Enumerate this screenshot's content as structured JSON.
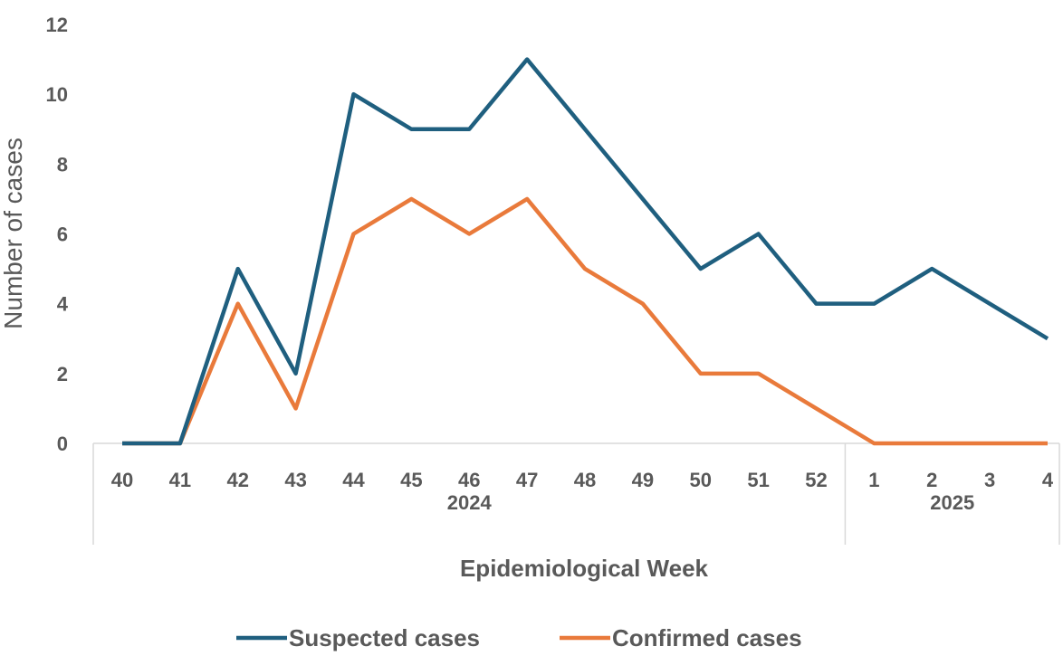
{
  "chart_data": {
    "type": "line",
    "title": "",
    "xlabel": "Epidemiological Week",
    "ylabel": "Number of cases",
    "ylim": [
      0,
      12
    ],
    "yticks": [
      0,
      2,
      4,
      6,
      8,
      10,
      12
    ],
    "grid": false,
    "legend_position": "bottom",
    "categories": [
      "40",
      "41",
      "42",
      "43",
      "44",
      "45",
      "46",
      "47",
      "48",
      "49",
      "50",
      "51",
      "52",
      "1",
      "2",
      "3",
      "4"
    ],
    "groups": [
      {
        "label": "2024",
        "count": 13
      },
      {
        "label": "2025",
        "count": 4
      }
    ],
    "series": [
      {
        "name": "Suspected cases",
        "color": "#1f5f7f",
        "values": [
          0,
          0,
          5,
          2,
          10,
          9,
          9,
          11,
          9,
          7,
          5,
          6,
          4,
          4,
          5,
          4,
          3
        ]
      },
      {
        "name": "Confirmed cases",
        "color": "#e97a3b",
        "values": [
          0,
          0,
          4,
          1,
          6,
          7,
          6,
          7,
          5,
          4,
          2,
          2,
          1,
          0,
          0,
          0,
          0
        ]
      }
    ]
  }
}
